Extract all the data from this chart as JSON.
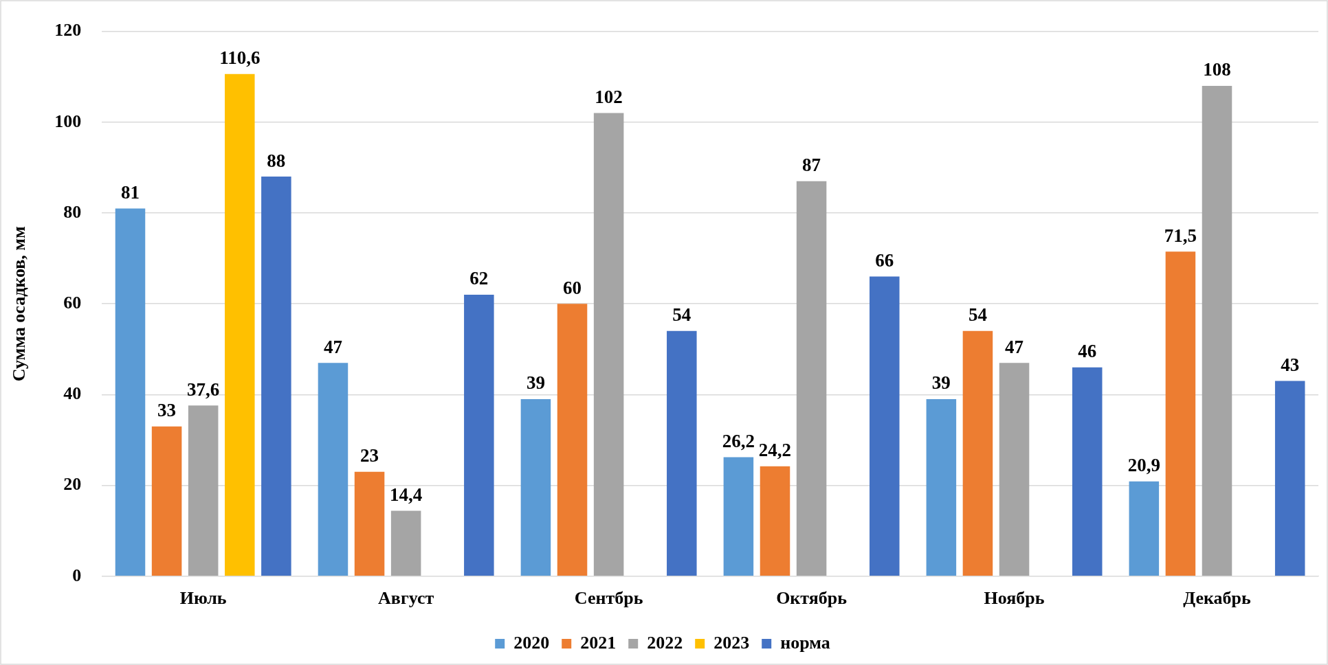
{
  "chart_data": {
    "type": "bar",
    "ylabel": "Сумма осадков, мм",
    "categories": [
      "Июль",
      "Август",
      "Сентбрь",
      "Октябрь",
      "Ноябрь",
      "Декабрь"
    ],
    "series": [
      {
        "name": "2020",
        "color": "#5b9bd5",
        "values": [
          81,
          47,
          39,
          26.2,
          39,
          20.9
        ],
        "value_labels": [
          "81",
          "47",
          "39",
          "26,2",
          "39",
          "20,9"
        ]
      },
      {
        "name": "2021",
        "color": "#ed7d31",
        "values": [
          33,
          23,
          60,
          24.2,
          54,
          71.5
        ],
        "value_labels": [
          "33",
          "23",
          "60",
          "24,2",
          "54",
          "71,5"
        ]
      },
      {
        "name": "2022",
        "color": "#a5a5a5",
        "values": [
          37.6,
          14.4,
          102,
          87,
          47,
          108
        ],
        "value_labels": [
          "37,6",
          "14,4",
          "102",
          "87",
          "47",
          "108"
        ]
      },
      {
        "name": "2023",
        "color": "#ffc000",
        "values": [
          110.6,
          null,
          null,
          null,
          null,
          null
        ],
        "value_labels": [
          "110,6",
          null,
          null,
          null,
          null,
          null
        ]
      },
      {
        "name": "норма",
        "color": "#4472c4",
        "values": [
          88,
          62,
          54,
          66,
          46,
          43
        ],
        "value_labels": [
          "88",
          "62",
          "54",
          "66",
          "46",
          "43"
        ]
      }
    ],
    "ylim": [
      0,
      120
    ],
    "yticks": [
      0,
      20,
      40,
      60,
      80,
      100,
      120
    ],
    "grid": "y",
    "legend": "bottom"
  }
}
